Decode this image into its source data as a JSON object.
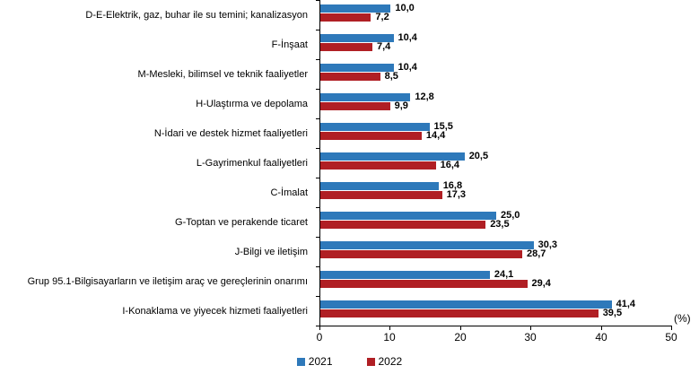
{
  "chart_data": {
    "type": "bar",
    "orientation": "horizontal",
    "title": "",
    "categories": [
      "D-E-Elektrik, gaz, buhar ile su temini; kanalizasyon",
      "F-İnşaat",
      "M-Mesleki, bilimsel ve teknik faaliyetler",
      "H-Ulaştırma ve depolama",
      "N-İdari ve destek hizmet faaliyetleri",
      "L-Gayrimenkul faaliyetleri",
      "C-İmalat",
      "G-Toptan ve perakende ticaret",
      "J-Bilgi ve iletişim",
      "Grup 95.1-Bilgisayarların ve iletişim araç ve gereçlerinin onarımı",
      "I-Konaklama ve yiyecek hizmeti faaliyetleri"
    ],
    "series": [
      {
        "name": "2021",
        "color": "#2E79BA",
        "values": [
          10.0,
          10.4,
          10.4,
          12.8,
          15.5,
          20.5,
          16.8,
          25.0,
          30.3,
          24.1,
          41.4
        ]
      },
      {
        "name": "2022",
        "color": "#B01F24",
        "values": [
          7.2,
          7.4,
          8.5,
          9.9,
          14.4,
          16.4,
          17.3,
          23.5,
          28.7,
          29.4,
          39.5
        ]
      }
    ],
    "value_labels": [
      [
        "10,0",
        "10,4",
        "10,4",
        "12,8",
        "15,5",
        "20,5",
        "16,8",
        "25,0",
        "30,3",
        "24,1",
        "41,4"
      ],
      [
        "7,2",
        "7,4",
        "8,5",
        "9,9",
        "14,4",
        "16,4",
        "17,3",
        "23,5",
        "28,7",
        "29,4",
        "39,5"
      ]
    ],
    "xlim": [
      0,
      50
    ],
    "x_ticks": [
      "0",
      "10",
      "20",
      "30",
      "40",
      "50"
    ],
    "axis_unit_label": "(%)",
    "legend": [
      {
        "label": "2021",
        "color": "#2E79BA"
      },
      {
        "label": "2022",
        "color": "#B01F24"
      }
    ],
    "legend_position": "bottom",
    "grid": false
  }
}
